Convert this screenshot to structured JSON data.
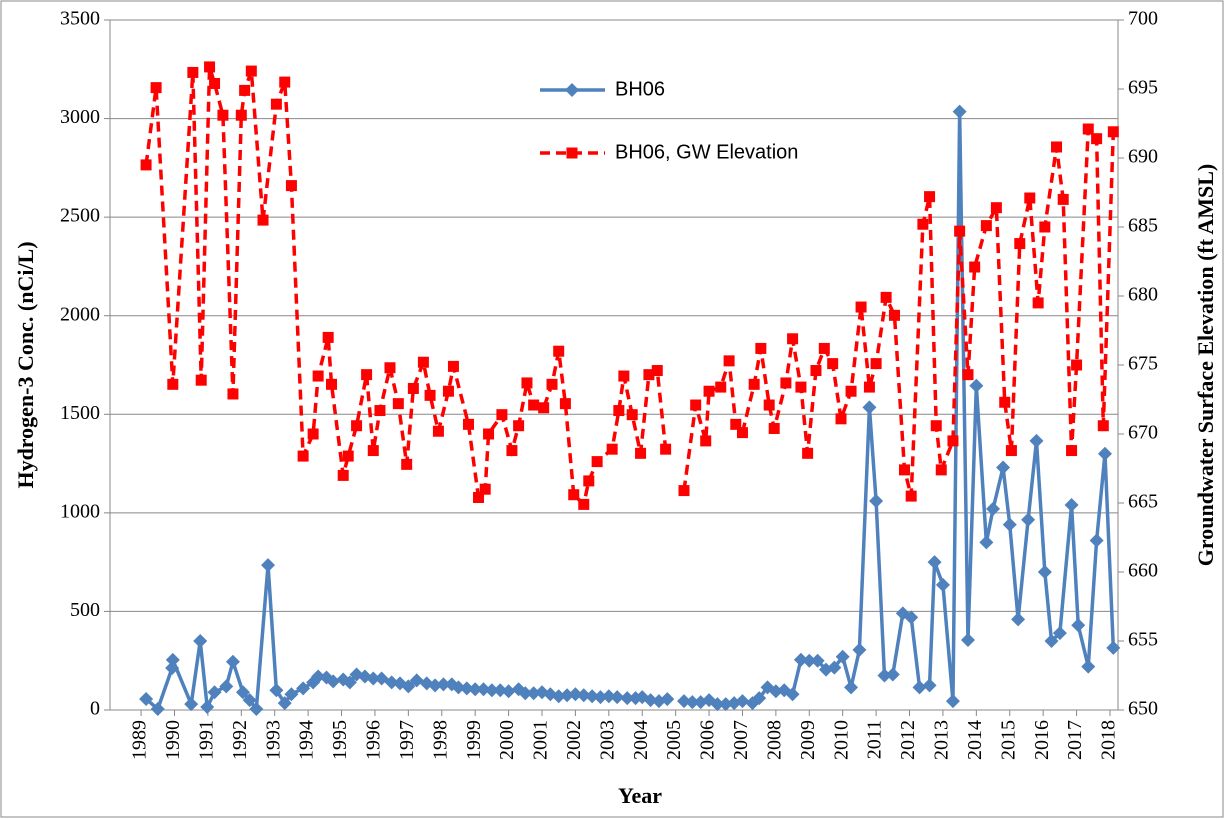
{
  "chart_data": {
    "type": "line",
    "xlabel": "Year",
    "ylabel": "Hydrogen-3 Conc. (nCi/L)",
    "y2label": "Groundwater Surface Elevation (ft AMSL)",
    "xlim": [
      1988.07,
      2018.24
    ],
    "xticks": [
      1989,
      1990,
      1991,
      1992,
      1993,
      1994,
      1995,
      1996,
      1997,
      1998,
      1999,
      2000,
      2001,
      2002,
      2003,
      2004,
      2005,
      2006,
      2007,
      2008,
      2009,
      2010,
      2011,
      2012,
      2013,
      2014,
      2015,
      2016,
      2017,
      2018
    ],
    "ylim": [
      0,
      3500
    ],
    "yticks": [
      0,
      500,
      1000,
      1500,
      2000,
      2500,
      3000,
      3500
    ],
    "y2lim": [
      650,
      700
    ],
    "y2ticks": [
      650,
      655,
      660,
      665,
      670,
      675,
      680,
      685,
      690,
      695,
      700
    ],
    "grid": true,
    "legend": "top",
    "series": [
      {
        "name": "BH06",
        "color": "#4f81bd",
        "marker": "diamond",
        "dash": false,
        "x": [
          1989.15,
          1989.5,
          1989.93,
          1989.95,
          1990.5,
          1990.77,
          1990.98,
          1991.2,
          1991.55,
          1991.75,
          1992.05,
          1992.25,
          1992.45,
          1992.8,
          1993.05,
          1993.3,
          1993.5,
          1993.85,
          1994.15,
          1994.3,
          1994.55,
          1994.75,
          1995.05,
          1995.25,
          1995.45,
          1995.7,
          1995.95,
          1996.2,
          1996.5,
          1996.75,
          1997.0,
          1997.25,
          1997.55,
          1997.8,
          1998.05,
          1998.3,
          1998.5,
          1998.75,
          1999.0,
          1999.25,
          1999.5,
          1999.75,
          2000.0,
          2000.3,
          2000.5,
          2000.75,
          2001.0,
          2001.25,
          2001.5,
          2001.75,
          2002.0,
          2002.25,
          2002.5,
          2002.75,
          2003.0,
          2003.25,
          2003.55,
          2003.8,
          2004.0,
          2004.25,
          2004.5,
          2004.75,
          2005.0,
          2005.25,
          2005.5,
          2005.75,
          2006.0,
          2006.25,
          2006.5,
          2006.75,
          2007.0,
          2007.3,
          2007.5,
          2007.75,
          2008.0,
          2008.25,
          2008.5,
          2008.75,
          2009.0,
          2009.25,
          2009.5,
          2009.75,
          2010.0,
          2010.25,
          2010.5,
          2010.8,
          2011.0,
          2011.25,
          2011.5,
          2011.8,
          2012.05,
          2012.3,
          2012.6,
          2012.75,
          2013.0,
          2013.3,
          2013.5,
          2013.75,
          2014.0,
          2014.3,
          2014.5,
          2014.8,
          2015.0,
          2015.25,
          2015.55,
          2015.8,
          2016.05,
          2016.25,
          2016.5,
          2016.85,
          2017.05,
          2017.35,
          2017.6,
          2017.85,
          2018.1
        ],
        "values": [
          56,
          5,
          213,
          254,
          30,
          350,
          15,
          90,
          120,
          245,
          90,
          50,
          5,
          735,
          100,
          35,
          80,
          110,
          140,
          170,
          165,
          145,
          155,
          140,
          180,
          170,
          160,
          160,
          140,
          135,
          120,
          150,
          135,
          125,
          130,
          130,
          115,
          110,
          105,
          105,
          100,
          100,
          95,
          105,
          85,
          85,
          90,
          80,
          70,
          75,
          80,
          75,
          70,
          65,
          70,
          65,
          60,
          60,
          65,
          50,
          45,
          55,
          null,
          45,
          40,
          40,
          50,
          30,
          30,
          35,
          45,
          35,
          60,
          115,
          95,
          100,
          80,
          255,
          250,
          250,
          205,
          215,
          270,
          115,
          305,
          1535,
          1060,
          175,
          180,
          490,
          470,
          115,
          125,
          750,
          635,
          45,
          3035,
          355,
          1645,
          850,
          1020,
          1230,
          940,
          460,
          965,
          1365,
          700,
          350,
          390,
          1040,
          430,
          220,
          860,
          1300,
          315
        ]
      },
      {
        "name": "BH06, GW Elevation",
        "color": "#ff0000",
        "marker": "square",
        "dash": true,
        "axis": "y2",
        "x": [
          1989.15,
          1989.45,
          1989.95,
          1990.55,
          1990.8,
          1991.05,
          1991.2,
          1991.45,
          1991.75,
          1992.0,
          1992.1,
          1992.3,
          1992.65,
          1993.05,
          1993.3,
          1993.5,
          1993.85,
          1994.15,
          1994.3,
          1994.6,
          1994.7,
          1995.05,
          1995.2,
          1995.45,
          1995.75,
          1995.95,
          1996.15,
          1996.45,
          1996.7,
          1996.95,
          1997.15,
          1997.45,
          1997.65,
          1997.9,
          1998.2,
          1998.35,
          1998.8,
          1999.1,
          1999.3,
          1999.4,
          1999.8,
          2000.1,
          2000.3,
          2000.55,
          2000.75,
          2001.05,
          2001.3,
          2001.5,
          2001.7,
          2001.95,
          2002.25,
          2002.4,
          2002.65,
          2003.1,
          2003.3,
          2003.45,
          2003.7,
          2003.95,
          2004.2,
          2004.45,
          2004.7,
          2005.0,
          2005.25,
          2005.6,
          2005.9,
          2006.0,
          2006.35,
          2006.6,
          2006.8,
          2007.0,
          2007.35,
          2007.55,
          2007.8,
          2007.95,
          2008.3,
          2008.5,
          2008.75,
          2008.95,
          2009.2,
          2009.45,
          2009.7,
          2009.95,
          2010.25,
          2010.55,
          2010.8,
          2011.0,
          2011.3,
          2011.55,
          2011.85,
          2012.05,
          2012.4,
          2012.6,
          2012.8,
          2012.95,
          2013.3,
          2013.5,
          2013.75,
          2013.95,
          2014.3,
          2014.6,
          2014.85,
          2015.05,
          2015.3,
          2015.6,
          2015.85,
          2016.05,
          2016.4,
          2016.6,
          2016.85,
          2017.0,
          2017.35,
          2017.6,
          2017.8,
          2018.1
        ],
        "values": [
          689.5,
          695.1,
          673.6,
          696.2,
          673.9,
          696.6,
          695.4,
          693.1,
          672.9,
          693.1,
          694.9,
          696.3,
          685.5,
          693.9,
          695.5,
          688.0,
          668.4,
          670.0,
          674.2,
          677.0,
          673.6,
          667.0,
          668.4,
          670.6,
          674.3,
          668.8,
          671.7,
          674.8,
          672.2,
          667.8,
          673.3,
          675.2,
          672.8,
          670.2,
          673.1,
          674.9,
          670.7,
          665.4,
          666.0,
          670.0,
          671.4,
          668.8,
          670.6,
          673.7,
          672.1,
          671.9,
          673.6,
          676.0,
          672.2,
          665.6,
          664.9,
          666.6,
          668.0,
          668.9,
          671.7,
          674.2,
          671.4,
          668.6,
          674.3,
          674.6,
          668.9,
          null,
          665.9,
          672.1,
          669.5,
          673.1,
          673.4,
          675.3,
          670.7,
          670.1,
          673.6,
          676.2,
          672.1,
          670.4,
          673.7,
          676.9,
          673.4,
          668.6,
          674.6,
          676.2,
          675.1,
          671.1,
          673.1,
          679.2,
          673.4,
          675.1,
          679.9,
          678.6,
          667.4,
          665.5,
          685.2,
          687.2,
          670.6,
          667.4,
          669.5,
          684.7,
          674.3,
          682.1,
          685.1,
          686.4,
          672.3,
          668.8,
          683.8,
          687.1,
          679.5,
          685.0,
          690.8,
          687.0,
          668.8,
          675.0,
          692.1,
          691.4,
          670.6,
          691.9
        ]
      }
    ]
  }
}
